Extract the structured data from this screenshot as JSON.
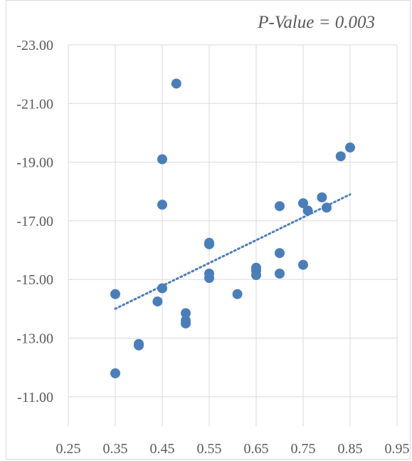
{
  "chart_data": {
    "type": "scatter",
    "title": "",
    "xlabel": "",
    "ylabel": "",
    "annotation": "P-Value = 0.003",
    "xlim": [
      0.25,
      0.95
    ],
    "ylim": [
      -10.0,
      -23.0
    ],
    "x_ticks": [
      0.25,
      0.35,
      0.45,
      0.55,
      0.65,
      0.75,
      0.85,
      0.95
    ],
    "x_tick_labels": [
      "0.25",
      "0.35",
      "0.45",
      "0.55",
      "0.65",
      "0.75",
      "0.85",
      "0.95"
    ],
    "y_ticks": [
      -11.0,
      -13.0,
      -15.0,
      -17.0,
      -19.0,
      -21.0,
      -23.0
    ],
    "y_tick_labels": [
      "-11.00",
      "-13.00",
      "-15.00",
      "-17.00",
      "-19.00",
      "-21.00",
      "-23.00"
    ],
    "y_axis_reversed": true,
    "grid": true,
    "marker_color": "#4a7ebb",
    "series": [
      {
        "points": [
          {
            "x": 0.35,
            "y": -14.5
          },
          {
            "x": 0.35,
            "y": -11.8
          },
          {
            "x": 0.4,
            "y": -12.75
          },
          {
            "x": 0.4,
            "y": -12.8
          },
          {
            "x": 0.44,
            "y": -14.25
          },
          {
            "x": 0.45,
            "y": -14.7
          },
          {
            "x": 0.45,
            "y": -17.55
          },
          {
            "x": 0.45,
            "y": -19.1
          },
          {
            "x": 0.48,
            "y": -21.68
          },
          {
            "x": 0.5,
            "y": -13.85
          },
          {
            "x": 0.5,
            "y": -13.6
          },
          {
            "x": 0.5,
            "y": -13.5
          },
          {
            "x": 0.55,
            "y": -16.25
          },
          {
            "x": 0.55,
            "y": -16.2
          },
          {
            "x": 0.55,
            "y": -15.2
          },
          {
            "x": 0.55,
            "y": -15.05
          },
          {
            "x": 0.61,
            "y": -14.5
          },
          {
            "x": 0.65,
            "y": -15.4
          },
          {
            "x": 0.65,
            "y": -15.3
          },
          {
            "x": 0.65,
            "y": -15.15
          },
          {
            "x": 0.7,
            "y": -17.5
          },
          {
            "x": 0.7,
            "y": -15.9
          },
          {
            "x": 0.7,
            "y": -15.2
          },
          {
            "x": 0.75,
            "y": -17.6
          },
          {
            "x": 0.75,
            "y": -15.5
          },
          {
            "x": 0.76,
            "y": -17.35
          },
          {
            "x": 0.79,
            "y": -17.8
          },
          {
            "x": 0.8,
            "y": -17.45
          },
          {
            "x": 0.83,
            "y": -19.2
          },
          {
            "x": 0.85,
            "y": -19.5
          }
        ]
      }
    ],
    "trendline": {
      "type": "linear",
      "x_start": 0.35,
      "y_start": -14.0,
      "x_end": 0.85,
      "y_end": -17.9
    }
  }
}
